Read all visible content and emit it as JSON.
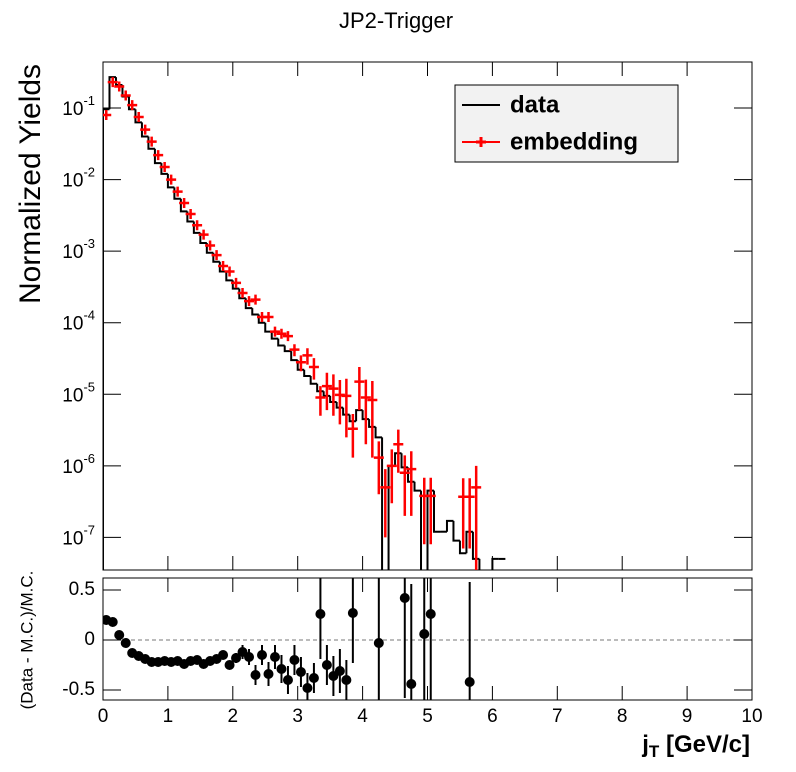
{
  "chart_data": [
    {
      "type": "histogram",
      "title": "JP2-Trigger",
      "ylabel": "Normalized Yields",
      "log_y": true,
      "xlim": [
        0,
        10
      ],
      "xticks": [
        0,
        1,
        2,
        3,
        4,
        5,
        6,
        7,
        8,
        9,
        10
      ],
      "ylim": [
        3.5e-08,
        0.44
      ],
      "yticks": [
        {
          "value": 1e-07,
          "label": "10",
          "exponent": "-7"
        },
        {
          "value": 1e-06,
          "label": "10",
          "exponent": "-6"
        },
        {
          "value": 1e-05,
          "label": "10",
          "exponent": "-5"
        },
        {
          "value": 0.0001,
          "label": "10",
          "exponent": "-4"
        },
        {
          "value": 0.001,
          "label": "10",
          "exponent": "-3"
        },
        {
          "value": 0.01,
          "label": "10",
          "exponent": "-2"
        },
        {
          "value": 0.1,
          "label": "10",
          "exponent": "-1"
        }
      ],
      "legend": "top-right",
      "series": [
        {
          "name": "data",
          "color": "#000000",
          "bins": [
            0,
            0.1,
            0.2,
            0.3,
            0.4,
            0.5,
            0.6,
            0.7,
            0.8,
            0.9,
            1.0,
            1.1,
            1.2,
            1.3,
            1.4,
            1.5,
            1.6,
            1.7,
            1.8,
            1.9,
            2.0,
            2.1,
            2.2,
            2.3,
            2.4,
            2.5,
            2.6,
            2.7,
            2.8,
            2.9,
            3.0,
            3.1,
            3.2,
            3.3,
            3.4,
            3.5,
            3.6,
            3.7,
            3.8,
            3.9,
            4.0,
            4.1,
            4.2,
            4.3,
            4.4,
            4.5,
            4.6,
            4.7,
            4.8,
            4.9,
            5.0,
            5.1,
            5.2,
            5.3,
            5.4,
            5.5,
            5.6,
            5.7,
            5.8,
            5.9,
            6.0,
            6.1,
            6.2
          ],
          "values": [
            0.096,
            0.27,
            0.21,
            0.145,
            0.096,
            0.063,
            0.04,
            0.027,
            0.017,
            0.012,
            0.0078,
            0.0054,
            0.0036,
            0.0026,
            0.0018,
            0.0013,
            0.00095,
            0.00071,
            0.00052,
            0.00039,
            0.0003,
            0.00022,
            0.00016,
            0.00013,
            0.0001,
            7.5e-05,
            6e-05,
            4.8e-05,
            4e-05,
            3e-05,
            2.2e-05,
            1.8e-05,
            1.4e-05,
            1.1e-05,
            9.5e-06,
            7.8e-06,
            6.5e-06,
            5.2e-06,
            4.2e-06,
            6e-06,
            4.5e-06,
            3.5e-06,
            2.5e-06,
            0,
            1e-06,
            1.5e-06,
            9.5e-07,
            6e-07,
            4.5e-07,
            0,
            4.5e-07,
            1.2e-07,
            1.2e-07,
            1.7e-07,
            9e-08,
            6e-08,
            1.2e-07,
            5e-08,
            0,
            0,
            5e-08,
            5e-08
          ]
        },
        {
          "name": "embedding",
          "color": "#ff0000",
          "x": [
            0.05,
            0.15,
            0.25,
            0.35,
            0.45,
            0.55,
            0.65,
            0.75,
            0.85,
            0.95,
            1.05,
            1.15,
            1.25,
            1.35,
            1.45,
            1.55,
            1.65,
            1.75,
            1.85,
            1.95,
            2.05,
            2.15,
            2.25,
            2.35,
            2.45,
            2.55,
            2.65,
            2.75,
            2.85,
            2.95,
            3.05,
            3.15,
            3.25,
            3.35,
            3.45,
            3.55,
            3.65,
            3.75,
            3.85,
            3.95,
            4.05,
            4.15,
            4.25,
            4.35,
            4.45,
            4.55,
            4.65,
            4.75,
            4.95,
            5.05,
            5.55,
            5.65,
            5.75
          ],
          "values": [
            0.08,
            0.23,
            0.2,
            0.15,
            0.11,
            0.075,
            0.05,
            0.034,
            0.022,
            0.015,
            0.01,
            0.0068,
            0.0047,
            0.0033,
            0.0023,
            0.0017,
            0.0012,
            0.00088,
            0.00062,
            0.00052,
            0.00036,
            0.00026,
            0.0002,
            0.00021,
            0.00012,
            0.00012,
            7.5e-05,
            7e-05,
            6.5e-05,
            4.2e-05,
            2.8e-05,
            3.5e-05,
            2.4e-05,
            9e-06,
            1.3e-05,
            1.2e-05,
            9.8e-06,
            9.5e-06,
            3.3e-06,
            1.5e-05,
            9e-06,
            8.3e-06,
            1.3e-06,
            5e-07,
            1e-06,
            2e-06,
            8e-07,
            9e-07,
            3.8e-07,
            3.8e-07,
            3.7e-07,
            3.7e-07,
            5e-07
          ],
          "errors": [
            0.002,
            0.004,
            0.004,
            0.003,
            0.002,
            0.0015,
            0.001,
            0.0007,
            0.0005,
            0.0003,
            0.0002,
            0.00015,
            0.0001,
            8e-05,
            6e-05,
            5e-05,
            4e-05,
            3e-05,
            2e-05,
            2e-05,
            1.5e-05,
            1.2e-05,
            1e-05,
            1.2e-05,
            8e-06,
            9e-06,
            7e-06,
            8e-06,
            9e-06,
            8e-06,
            7e-06,
            9e-06,
            8e-06,
            4e-06,
            7e-06,
            7e-06,
            6e-06,
            7e-06,
            2e-06,
            9e-06,
            7e-06,
            7e-06,
            9e-07,
            4e-07,
            7e-07,
            1.2e-06,
            6e-07,
            7e-07,
            3e-07,
            3e-07,
            3e-07,
            3e-07,
            5e-07
          ]
        }
      ]
    },
    {
      "type": "scatter",
      "ylabel": "(Data - M.C.)/M.C.",
      "xlabel": [
        "j",
        "T",
        " [GeV/c]"
      ],
      "xlim": [
        0,
        10
      ],
      "xticks": [
        0,
        1,
        2,
        3,
        4,
        5,
        6,
        7,
        8,
        9,
        10
      ],
      "ylim": [
        -0.6,
        0.62
      ],
      "yticks": [
        -0.5,
        0,
        0.5
      ],
      "reference_line": 0,
      "color": "#000000",
      "x": [
        0.05,
        0.15,
        0.25,
        0.35,
        0.45,
        0.55,
        0.65,
        0.75,
        0.85,
        0.95,
        1.05,
        1.15,
        1.25,
        1.35,
        1.45,
        1.55,
        1.65,
        1.75,
        1.85,
        1.95,
        2.05,
        2.15,
        2.25,
        2.35,
        2.45,
        2.55,
        2.65,
        2.75,
        2.85,
        2.95,
        3.05,
        3.15,
        3.25,
        3.35,
        3.45,
        3.55,
        3.65,
        3.75,
        3.85,
        4.25,
        4.65,
        4.75,
        4.95,
        5.05,
        5.65
      ],
      "values": [
        0.2,
        0.18,
        0.05,
        -0.03,
        -0.13,
        -0.16,
        -0.19,
        -0.22,
        -0.22,
        -0.21,
        -0.22,
        -0.21,
        -0.24,
        -0.21,
        -0.2,
        -0.24,
        -0.21,
        -0.19,
        -0.15,
        -0.25,
        -0.18,
        -0.12,
        -0.17,
        -0.35,
        -0.15,
        -0.34,
        -0.17,
        -0.29,
        -0.4,
        -0.2,
        -0.32,
        -0.48,
        -0.38,
        0.26,
        -0.25,
        -0.36,
        -0.31,
        -0.4,
        0.27,
        -0.03,
        0.42,
        -0.44,
        0.06,
        0.26,
        -0.42
      ],
      "errors": [
        0.01,
        0.01,
        0.01,
        0.01,
        0.01,
        0.01,
        0.01,
        0.01,
        0.01,
        0.01,
        0.01,
        0.01,
        0.01,
        0.02,
        0.02,
        0.02,
        0.03,
        0.03,
        0.04,
        0.04,
        0.05,
        0.07,
        0.08,
        0.1,
        0.1,
        0.12,
        0.12,
        0.14,
        0.14,
        0.15,
        0.15,
        0.15,
        0.15,
        0.45,
        0.2,
        0.2,
        0.22,
        0.2,
        0.5,
        0.8,
        1.0,
        1.0,
        1.0,
        1.0,
        1.0
      ]
    }
  ]
}
